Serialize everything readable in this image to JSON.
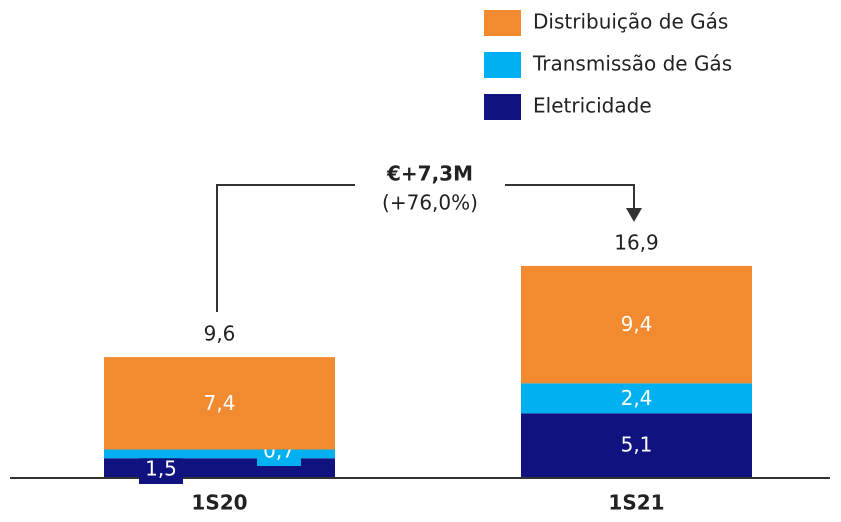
{
  "chart_data": {
    "type": "stacked_bar",
    "categories": [
      "1S20",
      "1S21"
    ],
    "series": [
      {
        "name": "Eletricidade",
        "color": "#10137f",
        "values": [
          1.5,
          5.1
        ],
        "value_labels": [
          "1,5",
          "5,1"
        ]
      },
      {
        "name": "Transmissão de Gás",
        "color": "#00b0f0",
        "values": [
          0.7,
          2.4
        ],
        "value_labels": [
          "0,7",
          "2,4"
        ]
      },
      {
        "name": "Distribuição de Gás",
        "color": "#f28a30",
        "values": [
          7.4,
          9.4
        ],
        "value_labels": [
          "7,4",
          "9,4"
        ]
      }
    ],
    "totals": [
      9.6,
      16.9
    ],
    "total_labels": [
      "9,6",
      "16,9"
    ],
    "annotation": {
      "title": "€+7,3M",
      "subtitle": "(+76,0%)"
    }
  }
}
